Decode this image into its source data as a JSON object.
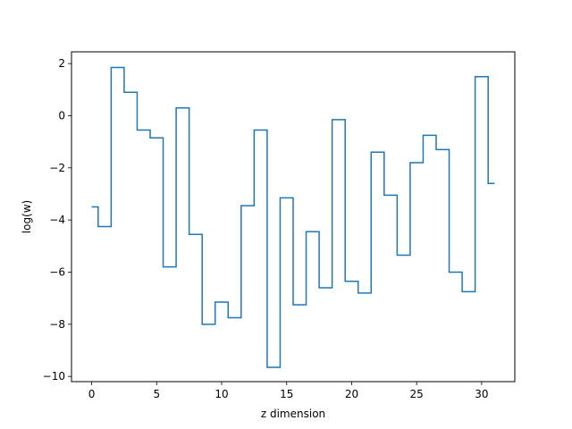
{
  "chart_data": {
    "type": "line",
    "drawstyle": "steps-mid",
    "xlabel": "z dimension",
    "ylabel": "log(w)",
    "xlim": [
      -1.55,
      32.55
    ],
    "ylim": [
      -10.2,
      2.45
    ],
    "xticks": [
      0,
      5,
      10,
      15,
      20,
      25,
      30
    ],
    "yticks": [
      -10,
      -8,
      -6,
      -4,
      -2,
      0,
      2
    ],
    "grid": false,
    "series": [
      {
        "name": "",
        "color": "#1f77b4",
        "x": [
          0,
          1,
          2,
          3,
          4,
          5,
          6,
          7,
          8,
          9,
          10,
          11,
          12,
          13,
          14,
          15,
          16,
          17,
          18,
          19,
          20,
          21,
          22,
          23,
          24,
          25,
          26,
          27,
          28,
          29,
          30,
          31
        ],
        "values": [
          -3.5,
          -4.25,
          1.85,
          0.9,
          -0.55,
          -0.85,
          -5.8,
          0.3,
          -4.55,
          -8.0,
          -7.15,
          -7.75,
          -3.45,
          -0.55,
          -9.65,
          -3.15,
          -7.25,
          -4.45,
          -6.6,
          -0.15,
          -6.35,
          -6.8,
          -1.4,
          -3.05,
          -5.35,
          -1.8,
          -0.75,
          -1.3,
          -6.0,
          -6.75,
          1.5,
          -2.6
        ]
      }
    ]
  }
}
